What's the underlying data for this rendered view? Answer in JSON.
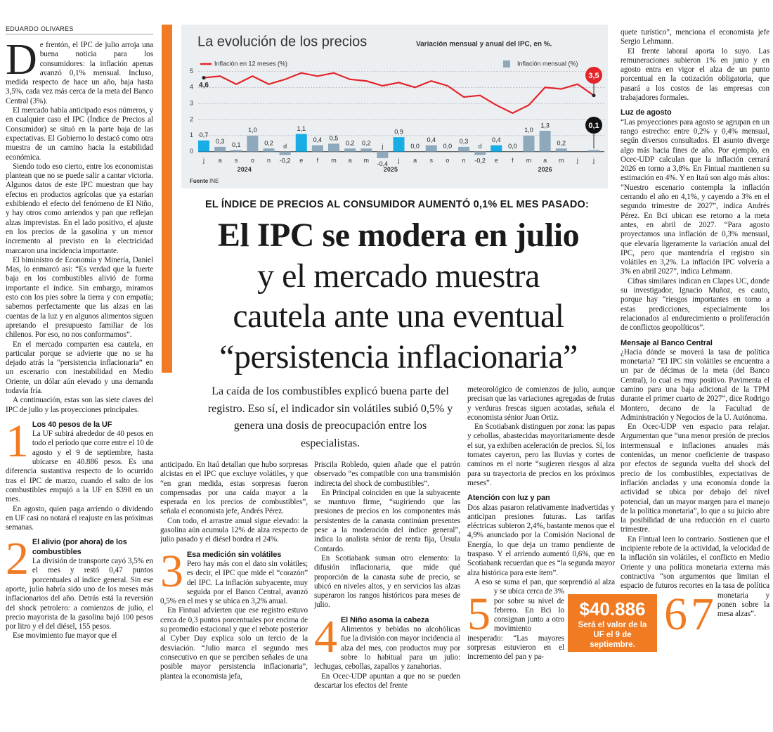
{
  "byline": "EDUARDO OLIVARES",
  "chart_data": {
    "type": "bar",
    "title": "La evolución de los precios",
    "subtitle": "Variación mensual y anual del IPC, en %.",
    "categories": [
      "j",
      "a",
      "s",
      "o",
      "n",
      "d",
      "e",
      "f",
      "m",
      "a",
      "m",
      "j",
      "j",
      "a",
      "s",
      "o",
      "n",
      "d",
      "e",
      "f",
      "m",
      "a",
      "m",
      "j",
      "j"
    ],
    "year_labels": [
      "2024",
      "2025",
      "2026"
    ],
    "series": [
      {
        "name": "Inflación en 12 meses (%)",
        "type": "line",
        "color": "#e3242b",
        "values": [
          4.6,
          4.7,
          4.2,
          4.7,
          4.2,
          4.5,
          4.9,
          4.7,
          4.9,
          4.5,
          4.4,
          4.1,
          4.3,
          4.0,
          4.4,
          4.1,
          3.4,
          3.5,
          2.9,
          2.4,
          2.9,
          4.0,
          3.9,
          4.2,
          3.5
        ],
        "value_labels": [
          "4,6",
          null,
          null,
          null,
          null,
          null,
          null,
          null,
          null,
          null,
          null,
          null,
          null,
          null,
          null,
          null,
          null,
          null,
          null,
          null,
          null,
          null,
          null,
          null,
          "3,5"
        ]
      },
      {
        "name": "Inflación mensual (%)",
        "type": "bar",
        "color": "#8ea8bc",
        "colors": [
          "#19ade6",
          "#8ea8bc",
          "#8ea8bc",
          "#8ea8bc",
          "#8ea8bc",
          "#8ea8bc",
          "#19ade6",
          "#8ea8bc",
          "#8ea8bc",
          "#8ea8bc",
          "#8ea8bc",
          "#8ea8bc",
          "#19ade6",
          "#8ea8bc",
          "#8ea8bc",
          "#8ea8bc",
          "#8ea8bc",
          "#8ea8bc",
          "#19ade6",
          "#8ea8bc",
          "#8ea8bc",
          "#8ea8bc",
          "#8ea8bc",
          "#8ea8bc",
          "#8ea8bc"
        ],
        "values": [
          0.7,
          0.3,
          0.1,
          1.0,
          0.2,
          -0.2,
          1.1,
          0.4,
          0.5,
          0.2,
          0.2,
          -0.4,
          0.9,
          0.0,
          0.4,
          0.0,
          0.3,
          -0.2,
          0.4,
          0.0,
          1.0,
          1.3,
          0.2,
          null,
          0.1
        ],
        "value_labels": [
          "0,7",
          "0,3",
          "0,1",
          "1,0",
          "0,2",
          "-0,2",
          "1,1",
          "0,4",
          "0,5",
          "0,2",
          "0,2",
          "-0,4",
          "0,9",
          "0,0",
          "0,4",
          "0,0",
          "0,3",
          "-0,2",
          "0,4",
          "0,0",
          "1,0",
          "1,3",
          "0,2",
          null,
          "0,1"
        ]
      }
    ],
    "ylim": [
      -1.5,
      5.5
    ],
    "yticks": [
      0,
      1,
      2,
      3,
      4,
      5
    ],
    "grid": true,
    "source_label": "Fuente",
    "source": "INE"
  },
  "kicker": "EL ÍNDICE DE PRECIOS AL CONSUMIDOR AUMENTÓ 0,1% EL MES PASADO:",
  "headline": [
    "El IPC se modera en julio",
    "y el mercado muestra",
    "cautela ante una eventual",
    "“persistencia inflacionaria”"
  ],
  "deck": "La caída de los combustibles explicó buena parte del registro. Eso sí, el indicador sin volátiles subió 0,5% y genera una dosis de preocupación entre los especialistas.",
  "callout": {
    "amount": "$40.886",
    "text": "Será el valor de la UF el 9 de septiembre."
  },
  "columns": [
    [
      {
        "dropcap": "D",
        "text": "e frentón, el IPC de julio arroja una buena noticia para los consumidores: la inflación apenas avanzó 0,1% mensual. Incluso, medida respecto de hace un año, baja hasta 3,5%, cada vez más cerca de la meta del Banco Central (3%)."
      },
      {
        "text": "El mercado había anticipado esos números, y en cualquier caso el IPC (Índice de Precios al Consumidor) se situó en la parte baja de las expectativas. El Gobierno lo destacó como otra muestra de un camino hacia la estabilidad económica."
      },
      {
        "text": "Siendo todo eso cierto, entre los economistas plantean que no se puede salir a cantar victoria. Algunos datos de este IPC muestran que hay efectos en productos agrícolas que ya estarían exhibiendo el efecto del fenómeno de El Niño, y hay otros como arriendos y pan que reflejan alzas imprevistas. En el lado positivo, el ajuste en los precios de la gasolina y un menor incremento al previsto en la electricidad marcaron una incidencia importante."
      },
      {
        "text": "El biministro de Economía y Minería, Daniel Mas, lo enmarcó así: “Es verdad que la fuerte baja en los combustibles alivió de forma importante el índice. Sin embargo, miramos esto con los pies sobre la tierra y con empatía; sabemos perfectamente que las alzas en las cuentas de la luz y en algunos alimentos siguen apretando el presupuesto familiar de los chilenos. Por eso, no nos conformamos”."
      },
      {
        "text": "En el mercado comparten esa cautela, en particular porque se advierte que no se ha dejado atrás la “persistencia inflacionaria” en un escenario con inestabilidad en Medio Oriente, un dólar aún elevado y una demanda todavía fría."
      },
      {
        "text": "A continuación, estas son las siete claves del IPC de julio y las proyecciones principales."
      },
      {
        "number": "1",
        "title": "Los 40 pesos de la UF",
        "text": "La UF subirá alrededor de 40 pesos en todo el período que corre entre el 10 de agosto y el 9 de septiembre, hasta ubicarse en 40.886 pesos. Es una diferencia sustantiva respecto de lo ocurrido tras el IPC de marzo, cuando el salto de los combustibles empujó a la UF en $398 en un mes."
      },
      {
        "text": "En agosto, quien paga arriendo o dividendo en UF casi no notará el reajuste en las próximas semanas."
      },
      {
        "number": "2",
        "title": "El alivio (por ahora) de los combustibles",
        "text": "La división de transporte cayó 3,5% en el mes y restó 0,47 puntos porcentuales al índice general. Sin ese aporte, julio habría sido uno de los meses más inflacionarios del año. Detrás está la reversión del shock petrolero: a comienzos de julio, el precio mayorista de la gasolina bajó 100 pesos por litro y el del diésel, 155 pesos."
      },
      {
        "text": "Ese movimiento fue mayor que el"
      }
    ],
    [
      {
        "lead": true,
        "text": "anticipado. En Itaú detallan que hubo sorpresas alcistas en el IPC que excluye volátiles, y que “en gran medida, estas sorpresas fueron compensadas por una caída mayor a la esperada en los precios de combustibles”, señala el economista jefe, Andrés Pérez."
      },
      {
        "text": "Con todo, el arrastre anual sigue elevado: la gasolina aún acumula 12% de alza respecto de julio pasado y el diésel bordea el 24%."
      },
      {
        "number": "3",
        "title": "Esa medición sin volátiles",
        "text": "Pero hay más con el dato sin volátiles; es decir, el IPC que mide el “corazón” del IPC. La inflación subyacente, muy seguida por el Banco Central, avanzó 0,5% en el mes y se ubica en 3,2% anual."
      },
      {
        "text": "En Fintual advierten que ese registro estuvo cerca de 0,3 puntos porcentuales por encima de su promedio estacional y que el rebote posterior al Cyber Day explica solo un tercio de la desviación. “Julio marca el segundo mes consecutivo en que se perciben señales de una posible mayor persistencia inflacionaria”, plantea la economista jefa,"
      }
    ],
    [
      {
        "lead": true,
        "text": "Priscila Robledo, quien añade que el patrón observado “es compatible con una transmisión indirecta del shock de combustibles”."
      },
      {
        "text": "En Principal coinciden en que la subyacente se mantuvo firme, “sugiriendo que las presiones de precios en los componentes más persistentes de la canasta continúan presentes pese a la moderación del índice general”, indica la analista sénior de renta fija, Úrsula Contardo."
      },
      {
        "text": "En Scotiabank suman otro elemento: la difusión inflacionaria, que mide qué proporción de la canasta sube de precio, se ubicó en niveles altos, y en servicios las alzas superaron los rangos históricos para meses de julio."
      },
      {
        "number": "4",
        "title": "El Niño asoma la cabeza",
        "text": "Alimentos y bebidas no alcohólicas fue la división con mayor incidencia al alza del mes, con productos muy por sobre lo habitual para un julio: lechugas, cebollas, zapallos y zanahorias."
      },
      {
        "text": "En Ocec-UDP apuntan a que no se pueden descartar los efectos del frente"
      }
    ],
    [
      {
        "lead": true,
        "text": "meteorológico de comienzos de julio, aunque precisan que las variaciones agregadas de frutas y verduras frescas siguen acotadas, señala el economista sénior Juan Ortiz."
      },
      {
        "text": "En Scotiabank distinguen por zona: las papas y cebollas, abastecidas mayoritariamente desde el sur, ya exhiben aceleración de precios. Sí, los tomates cayeron, pero las lluvias y cortes de caminos en el norte “sugieren riesgos al alza para su trayectoria de precios en los próximos meses”."
      },
      {
        "number": "5",
        "title": "Atención con luz y pan",
        "text": "Dos alzas pasaron relativamente inadvertidas y anticipan presiones futuras. Las tarifas eléctricas subieron 2,4%, bastante menos que el 4,9% anunciado por la Comisión Nacional de Energía, lo que deja un tramo pendiente de traspaso. Y el arriendo aumentó 0,6%, que en Scotiabank recuerdan que es “la segunda mayor alza histórica para este ítem”."
      },
      {
        "text": "A eso se suma el pan, que sorprendió al alza y se ubica cerca de 3% por sobre su nivel de febrero. En Bci lo consignan junto a otro movimiento inesperado: “Las mayores sorpresas estuvieron en el incremento del pan y pa-"
      }
    ],
    [
      {
        "lead": true,
        "text": "quete turístico”, menciona el economista jefe Sergio Lehmann."
      },
      {
        "text": "El frente laboral aporta lo suyo. Las remuneraciones subieron 1% en junio y en agosto entra en vigor el alza de un punto porcentual en la cotización obligatoria, que pasará a los costos de las empresas con trabajadores formales."
      },
      {
        "number": "6",
        "title": "Luz de agosto",
        "text": "“Las proyecciones para agosto se agrupan en un rango estrecho: entre 0,2% y 0,4% mensual, según diversos consultados. El asunto diverge algo más hacia fines de año. Por ejemplo, en Ocec-UDP calculan que la inflación cerrará 2026 en torno a 3,8%. En Fintual mantienen su estimación en 4%. Y en Itaú son algo más altos: “Nuestro escenario contempla la inflación cerrando el año en 4,1%, y cayendo a 3% en el segundo trimestre de 2027”, indica Andrés Pérez. En Bci ubican ese retorno a la meta antes, en abril de 2027. “Para agosto proyectamos una inflación de 0,3% mensual, que elevaría ligeramente la variación anual del IPC, pero que mantendría el registro sin volátiles en 3,2%. La inflación IPC volvería a 3% en abril 2027”, indica Lehmann."
      },
      {
        "text": "Cifras similares indican en Clapes UC, donde su investigador, Ignacio Muñoz, es cauto, porque hay “riesgos importantes en torno a estas predicciones, especialmente los relacionados al endurecimiento o proliferación de conflictos geopolíticos”."
      },
      {
        "number": "7",
        "title": "Mensaje al Banco Central",
        "text": "¿Hacia dónde se moverá la tasa de política monetaria? “El IPC sin volátiles se encuentra a un par de décimas de la meta (del Banco Central), lo cual es muy positivo. Pavimenta el camino para una baja adicional de la TPM durante el primer cuarto de 2027”, dice Rodrigo Montero, decano de la Facultad de Administración y Negocios de la U. Autónoma."
      },
      {
        "text": "En Ocec-UDP ven espacio para relajar. Argumentan que “una menor presión de precios intermensual e inflaciones anuales más contenidas, un menor coeficiente de traspaso por efectos de segunda vuelta del shock del precio de los combustibles, expectativas de inflación ancladas y una economía donde la actividad se ubica por debajo del nivel potencial, dan un mayor margen para el manejo de la política monetaria”, lo que a su juicio abre la posibilidad de una reducción en el cuarto trimestre."
      },
      {
        "text": "En Fintual leen lo contrario. Sostienen que el incipiente rebote de la actividad, la velocidad de la inflación sin volátiles, el conflicto en Medio Oriente y una política monetaria externa más contractiva “son argumentos que limitan el espacio de futuros recortes en la tasa de política monetaria y ponen sobre la mesa alzas”."
      }
    ]
  ]
}
